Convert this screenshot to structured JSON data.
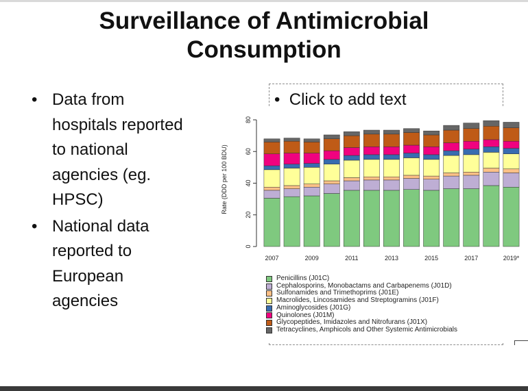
{
  "slide": {
    "title": "Surveillance of Antimicrobial\nConsumption",
    "bullets": [
      "Data from\nhospitals reported\nto national\nagencies (eg.\nHPSC)",
      "National data\nreported to\nEuropean\nagencies"
    ],
    "placeholder": "Click to add text"
  },
  "chart_data": {
    "type": "bar",
    "stacked": true,
    "ylabel": "Rate (DDD per 100 BDU)",
    "xlabel": "",
    "ylim": [
      0,
      80
    ],
    "yticks": [
      0,
      20,
      40,
      60,
      80
    ],
    "categories": [
      "2007",
      "2008",
      "2009",
      "2010",
      "2011",
      "2012",
      "2013",
      "2014",
      "2015",
      "2016",
      "2017",
      "2018",
      "2019*"
    ],
    "xtick_labels": [
      "2007",
      "2009",
      "2011",
      "2013",
      "2015",
      "2017",
      "2019*"
    ],
    "legend_position": "bottom",
    "series": [
      {
        "name": "Penicillins (J01C)",
        "color": "#7fc97f",
        "values": [
          30.5,
          31.5,
          32,
          33.5,
          35.5,
          35.5,
          35.5,
          36,
          35.5,
          36.5,
          36.5,
          38.5,
          37.5
        ]
      },
      {
        "name": "Cephalosporins, Monobactams and Carbapenems (J01D)",
        "color": "#beaed4",
        "values": [
          5,
          5,
          5.5,
          6,
          6,
          6.5,
          6.5,
          7,
          7,
          8,
          8.5,
          8.5,
          9
        ]
      },
      {
        "name": "Sulfonamides and Trimethoprims (J01E)",
        "color": "#fdc086",
        "values": [
          2,
          2,
          2,
          2,
          2,
          2,
          2,
          2,
          2,
          2,
          2,
          2.5,
          2.5
        ]
      },
      {
        "name": "Macrolides, Lincosamides and Streptogramins (J01F)",
        "color": "#ffff99",
        "values": [
          11,
          11,
          10.5,
          10.5,
          11,
          11,
          11,
          11,
          10.5,
          11,
          11,
          10,
          9.5
        ]
      },
      {
        "name": "Aminoglycosides (J01G)",
        "color": "#386cb0",
        "values": [
          2.5,
          2.5,
          2.5,
          3,
          3,
          3,
          3,
          3,
          3,
          3,
          3.5,
          3.5,
          3.5
        ]
      },
      {
        "name": "Quinolones (J01M)",
        "color": "#f0027f",
        "values": [
          7.5,
          7,
          6.5,
          5.5,
          5,
          5,
          5,
          5,
          5,
          5,
          5,
          4.5,
          4.5
        ]
      },
      {
        "name": "Glycopeptides, Imidazoles and Nitrofurans (J01X)",
        "color": "#bf5b17",
        "values": [
          7.5,
          7.5,
          7,
          7.5,
          7.5,
          8,
          8,
          8,
          7.5,
          8,
          8,
          8.5,
          8.5
        ]
      },
      {
        "name": "Tetracyclines, Amphicols and Other Systemic Antimicrobials",
        "color": "#666666",
        "values": [
          2,
          2,
          2,
          2.5,
          2.5,
          2.5,
          2.5,
          2.5,
          2.5,
          3,
          3.5,
          3.5,
          3.5
        ]
      }
    ]
  }
}
